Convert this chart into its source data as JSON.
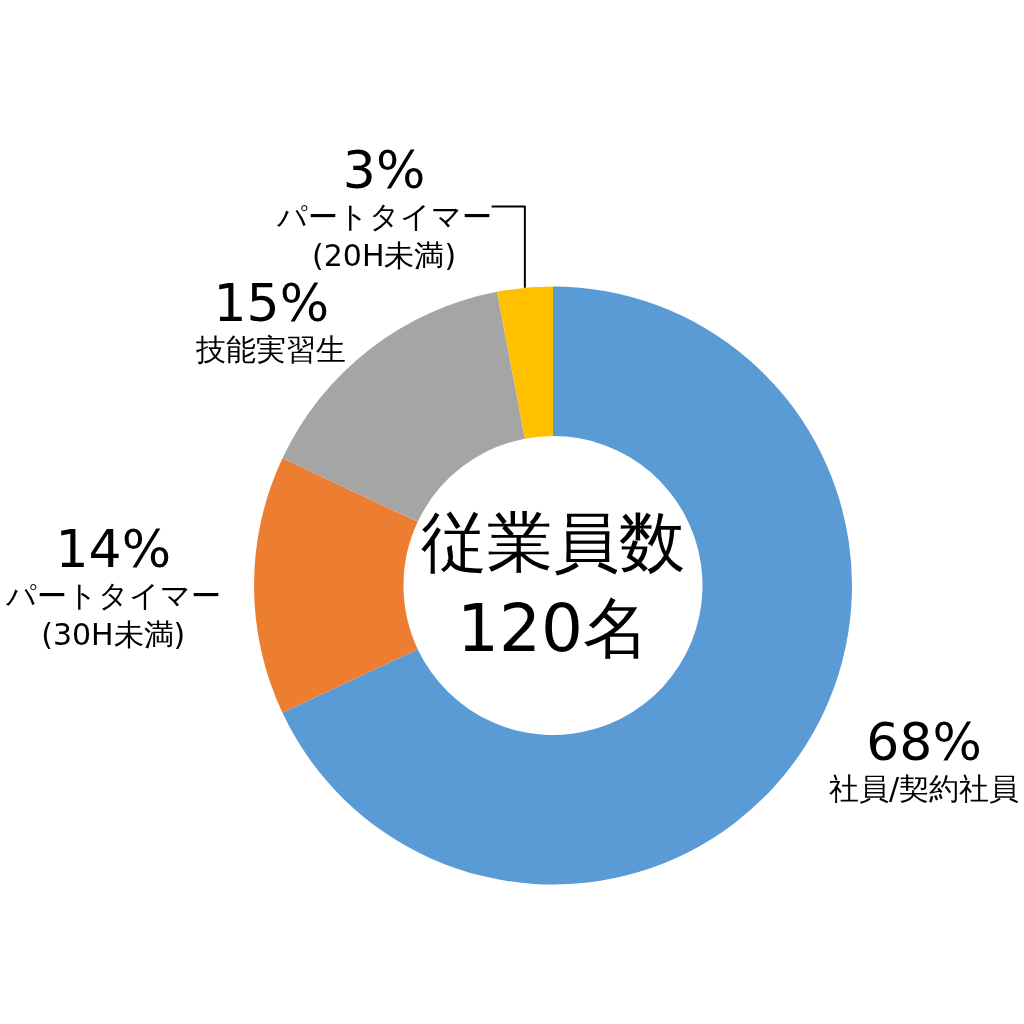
{
  "chart_data": {
    "type": "donut",
    "title": "従業員数\n120名",
    "categories": [
      "社員/契約社員",
      "パートタイマー\n(30H未満)",
      "技能実習生",
      "パートタイマー\n(20H未満)"
    ],
    "values": [
      68,
      14,
      15,
      3
    ],
    "value_labels": [
      "68%",
      "14%",
      "15%",
      "3%"
    ],
    "colors": [
      "#5b9bd5",
      "#ed7d31",
      "#a5a5a5",
      "#ffc000"
    ],
    "legend": false
  }
}
